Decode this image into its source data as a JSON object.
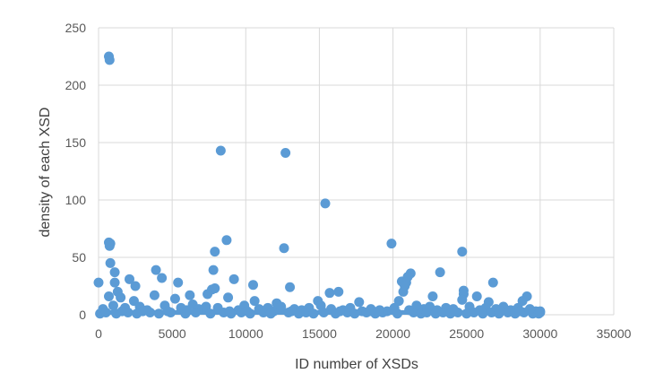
{
  "chart_data": {
    "type": "scatter",
    "title": "",
    "xlabel": "ID number of XSDs",
    "ylabel": "density of each XSD",
    "xlim": [
      0,
      35000
    ],
    "ylim": [
      0,
      250
    ],
    "x_ticks": [
      "0",
      "5000",
      "10000",
      "15000",
      "20000",
      "25000",
      "30000",
      "35000"
    ],
    "y_ticks": [
      "0",
      "50",
      "100",
      "150",
      "200",
      "250"
    ],
    "grid": true,
    "legend": "none",
    "marker_color": "#5b9bd5",
    "series": [
      {
        "points": [
          [
            700,
            225
          ],
          [
            750,
            222
          ],
          [
            8300,
            143
          ],
          [
            12700,
            141
          ],
          [
            15400,
            97
          ],
          [
            700,
            63
          ],
          [
            800,
            62
          ],
          [
            750,
            60
          ],
          [
            8700,
            65
          ],
          [
            7900,
            55
          ],
          [
            12600,
            58
          ],
          [
            19900,
            62
          ],
          [
            24700,
            55
          ],
          [
            800,
            45
          ],
          [
            1100,
            37
          ],
          [
            3900,
            39
          ],
          [
            4300,
            32
          ],
          [
            7800,
            39
          ],
          [
            9200,
            31
          ],
          [
            10500,
            26
          ],
          [
            20600,
            29
          ],
          [
            21200,
            36
          ],
          [
            21000,
            33
          ],
          [
            20900,
            28
          ],
          [
            23200,
            37
          ],
          [
            26800,
            28
          ],
          [
            0,
            28
          ],
          [
            1100,
            28
          ],
          [
            2100,
            31
          ],
          [
            2500,
            25
          ],
          [
            5400,
            28
          ],
          [
            7700,
            22
          ],
          [
            7900,
            23
          ],
          [
            13000,
            24
          ],
          [
            20700,
            20
          ],
          [
            20800,
            25
          ],
          [
            24800,
            21
          ],
          [
            24800,
            18
          ],
          [
            25700,
            16
          ],
          [
            29100,
            16
          ],
          [
            15700,
            19
          ],
          [
            16300,
            20
          ],
          [
            700,
            16
          ],
          [
            3800,
            17
          ],
          [
            5200,
            14
          ],
          [
            6200,
            17
          ],
          [
            7400,
            18
          ],
          [
            8800,
            15
          ],
          [
            10600,
            12
          ],
          [
            14900,
            12
          ],
          [
            17700,
            11
          ],
          [
            20400,
            12
          ],
          [
            22700,
            16
          ],
          [
            24700,
            13
          ],
          [
            26500,
            11
          ],
          [
            28800,
            12
          ],
          [
            1300,
            20
          ],
          [
            1500,
            15
          ],
          [
            2400,
            12
          ],
          [
            12100,
            10
          ],
          [
            300,
            5
          ],
          [
            1000,
            8
          ],
          [
            1800,
            6
          ],
          [
            2800,
            7
          ],
          [
            3300,
            4
          ],
          [
            4500,
            8
          ],
          [
            5600,
            6
          ],
          [
            6400,
            9
          ],
          [
            6800,
            5
          ],
          [
            7300,
            7
          ],
          [
            8100,
            6
          ],
          [
            9500,
            4
          ],
          [
            9900,
            8
          ],
          [
            10900,
            5
          ],
          [
            11500,
            6
          ],
          [
            11900,
            3
          ],
          [
            12400,
            7
          ],
          [
            13300,
            5
          ],
          [
            13800,
            4
          ],
          [
            14300,
            6
          ],
          [
            15100,
            8
          ],
          [
            15800,
            5
          ],
          [
            16600,
            4
          ],
          [
            17100,
            6
          ],
          [
            17900,
            3
          ],
          [
            18500,
            5
          ],
          [
            19100,
            4
          ],
          [
            19600,
            3
          ],
          [
            20100,
            6
          ],
          [
            21600,
            8
          ],
          [
            22100,
            5
          ],
          [
            22500,
            7
          ],
          [
            23000,
            4
          ],
          [
            23600,
            6
          ],
          [
            24100,
            5
          ],
          [
            25200,
            7
          ],
          [
            25900,
            4
          ],
          [
            26300,
            6
          ],
          [
            27000,
            5
          ],
          [
            27500,
            7
          ],
          [
            28000,
            4
          ],
          [
            28500,
            6
          ],
          [
            29300,
            5
          ],
          [
            29700,
            3
          ],
          [
            30000,
            2
          ],
          [
            100,
            1
          ],
          [
            500,
            2
          ],
          [
            1200,
            1
          ],
          [
            2000,
            2
          ],
          [
            2600,
            1
          ],
          [
            3500,
            2
          ],
          [
            4100,
            1
          ],
          [
            4900,
            2
          ],
          [
            5900,
            1
          ],
          [
            6600,
            2
          ],
          [
            7600,
            1
          ],
          [
            8500,
            2
          ],
          [
            9000,
            1
          ],
          [
            9700,
            2
          ],
          [
            10300,
            1
          ],
          [
            11200,
            2
          ],
          [
            11700,
            1
          ],
          [
            12900,
            2
          ],
          [
            13600,
            1
          ],
          [
            14100,
            2
          ],
          [
            14600,
            1
          ],
          [
            15300,
            2
          ],
          [
            16100,
            1
          ],
          [
            16900,
            2
          ],
          [
            17400,
            1
          ],
          [
            18200,
            2
          ],
          [
            18800,
            1
          ],
          [
            19300,
            2
          ],
          [
            20300,
            1
          ],
          [
            21400,
            2
          ],
          [
            21900,
            1
          ],
          [
            22300,
            2
          ],
          [
            22900,
            1
          ],
          [
            23400,
            2
          ],
          [
            23900,
            1
          ],
          [
            24400,
            2
          ],
          [
            25000,
            1
          ],
          [
            25500,
            2
          ],
          [
            26100,
            1
          ],
          [
            26700,
            2
          ],
          [
            27200,
            1
          ],
          [
            27800,
            2
          ],
          [
            28300,
            1
          ],
          [
            28900,
            2
          ],
          [
            29500,
            1
          ],
          [
            29900,
            1
          ],
          [
            30000,
            3
          ],
          [
            1600,
            3
          ],
          [
            3000,
            3
          ],
          [
            4700,
            3
          ],
          [
            6000,
            4
          ],
          [
            8900,
            3
          ],
          [
            10100,
            3
          ],
          [
            11000,
            4
          ],
          [
            13100,
            3
          ],
          [
            16400,
            3
          ],
          [
            18400,
            3
          ],
          [
            19000,
            3
          ],
          [
            21100,
            4
          ],
          [
            24200,
            3
          ],
          [
            26000,
            3
          ],
          [
            27300,
            3
          ],
          [
            28600,
            3
          ]
        ]
      }
    ]
  }
}
